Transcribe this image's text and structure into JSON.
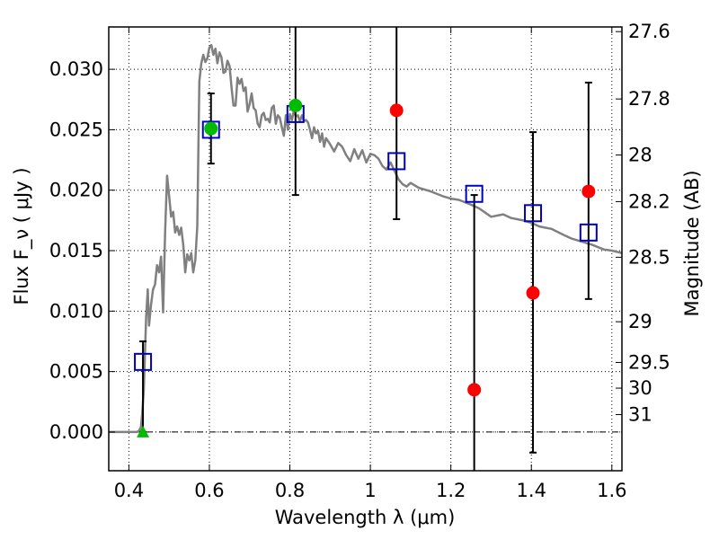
{
  "chart_data": {
    "type": "scatter",
    "xlabel": "Wavelength  λ (μm)",
    "ylabel": "Flux  F_ν  ( μJy )",
    "y2label": "Magnitude (AB)",
    "xlim": [
      0.35,
      1.625
    ],
    "ylim": [
      -0.0032,
      0.0335
    ],
    "grid": true,
    "xticks": [
      "0.4",
      "0.6",
      "0.8",
      "1",
      "1.2",
      "1.4",
      "1.6"
    ],
    "yticks": [
      "0.000",
      "0.005",
      "0.010",
      "0.015",
      "0.020",
      "0.025",
      "0.030"
    ],
    "y2ticks": [
      "27.6",
      "27.8",
      "28",
      "28.2",
      "28.5",
      "29",
      "29.5",
      "30",
      "31"
    ],
    "colors": {
      "sed": "#808080",
      "model_points": "#0000cc",
      "red_points": "#ff0000",
      "green_points": "#00bb00",
      "errorbar": "#000000"
    },
    "series": [
      {
        "marker": "line",
        "x": [
          0.35,
          0.42,
          0.425,
          0.43,
          0.433,
          0.437,
          0.44,
          0.443,
          0.447,
          0.45,
          0.455,
          0.46,
          0.465,
          0.47,
          0.475,
          0.48,
          0.485,
          0.49,
          0.495,
          0.5,
          0.505,
          0.51,
          0.515,
          0.52,
          0.525,
          0.53,
          0.535,
          0.54,
          0.545,
          0.55,
          0.555,
          0.56,
          0.565,
          0.57,
          0.575,
          0.58,
          0.585,
          0.59,
          0.595,
          0.6,
          0.605,
          0.61,
          0.615,
          0.62,
          0.625,
          0.63,
          0.635,
          0.64,
          0.645,
          0.65,
          0.655,
          0.66,
          0.665,
          0.67,
          0.675,
          0.68,
          0.685,
          0.69,
          0.695,
          0.7,
          0.705,
          0.71,
          0.715,
          0.72,
          0.725,
          0.73,
          0.735,
          0.74,
          0.745,
          0.75,
          0.755,
          0.76,
          0.765,
          0.77,
          0.775,
          0.78,
          0.785,
          0.79,
          0.795,
          0.8,
          0.805,
          0.81,
          0.815,
          0.82,
          0.825,
          0.83,
          0.835,
          0.84,
          0.845,
          0.85,
          0.855,
          0.86,
          0.865,
          0.87,
          0.875,
          0.88,
          0.885,
          0.89,
          0.9,
          0.91,
          0.92,
          0.93,
          0.94,
          0.95,
          0.96,
          0.97,
          0.98,
          0.99,
          1.0,
          1.01,
          1.02,
          1.03,
          1.04,
          1.05,
          1.06,
          1.07,
          1.08,
          1.09,
          1.1,
          1.12,
          1.15,
          1.18,
          1.2,
          1.22,
          1.25,
          1.27,
          1.3,
          1.33,
          1.35,
          1.38,
          1.4,
          1.42,
          1.45,
          1.48,
          1.5,
          1.52,
          1.55,
          1.58,
          1.6,
          1.625
        ],
        "y": [
          0.0,
          0.0,
          0.0001,
          0.0004,
          0.0015,
          0.0035,
          0.0065,
          0.0095,
          0.0118,
          0.0088,
          0.0105,
          0.0118,
          0.0122,
          0.0138,
          0.0132,
          0.0145,
          0.0099,
          0.0165,
          0.0212,
          0.0195,
          0.0178,
          0.0182,
          0.0165,
          0.017,
          0.0163,
          0.0169,
          0.0155,
          0.0132,
          0.0147,
          0.0142,
          0.0148,
          0.0132,
          0.0142,
          0.017,
          0.029,
          0.0305,
          0.0312,
          0.0306,
          0.0309,
          0.0318,
          0.032,
          0.0312,
          0.0317,
          0.0305,
          0.0314,
          0.031,
          0.0297,
          0.0298,
          0.0307,
          0.0303,
          0.0285,
          0.027,
          0.027,
          0.0293,
          0.0288,
          0.0292,
          0.0282,
          0.0285,
          0.0265,
          0.0271,
          0.028,
          0.0268,
          0.0266,
          0.0255,
          0.0252,
          0.0262,
          0.0264,
          0.0258,
          0.0259,
          0.0256,
          0.0268,
          0.027,
          0.0255,
          0.0262,
          0.026,
          0.0252,
          0.0245,
          0.0262,
          0.025,
          0.0263,
          0.0258,
          0.0266,
          0.0261,
          0.0262,
          0.0257,
          0.0262,
          0.0257,
          0.0258,
          0.0256,
          0.025,
          0.0243,
          0.0252,
          0.0247,
          0.0249,
          0.024,
          0.0247,
          0.0236,
          0.0243,
          0.0238,
          0.0232,
          0.0239,
          0.0236,
          0.0229,
          0.0224,
          0.0234,
          0.0226,
          0.0233,
          0.0223,
          0.023,
          0.0229,
          0.0226,
          0.022,
          0.0217,
          0.0223,
          0.0216,
          0.0209,
          0.0205,
          0.0203,
          0.0206,
          0.0202,
          0.0199,
          0.0195,
          0.0193,
          0.0192,
          0.0188,
          0.0185,
          0.0178,
          0.018,
          0.0177,
          0.0175,
          0.0173,
          0.017,
          0.0168,
          0.0163,
          0.016,
          0.0158,
          0.0155,
          0.0151,
          0.015,
          0.0148
        ]
      },
      {
        "marker": "open-square",
        "x": [
          0.435,
          0.604,
          0.814,
          1.065,
          1.258,
          1.404,
          1.542
        ],
        "y": [
          0.0058,
          0.025,
          0.0263,
          0.0224,
          0.0197,
          0.0181,
          0.0165
        ]
      },
      {
        "marker": "filled-circle",
        "x": [
          0.604,
          0.814
        ],
        "y": [
          0.0251,
          0.027
        ],
        "color": "green"
      },
      {
        "marker": "filled-circle",
        "x": [
          1.065,
          1.258,
          1.404,
          1.542
        ],
        "y": [
          0.0266,
          0.0035,
          0.0115,
          0.0199
        ],
        "color": "red"
      },
      {
        "marker": "triangle",
        "x": [
          0.435
        ],
        "y": [
          0.0
        ],
        "color": "green"
      },
      {
        "marker": "errorbar",
        "x": [
          0.435,
          0.604,
          0.814,
          1.065,
          1.258,
          1.404,
          1.542
        ],
        "low": [
          0.0,
          0.0222,
          0.0196,
          0.0176,
          -0.0032,
          -0.0017,
          0.011
        ],
        "high": [
          0.0075,
          0.028,
          0.0335,
          0.0335,
          0.0196,
          0.0248,
          0.0289
        ]
      }
    ]
  }
}
